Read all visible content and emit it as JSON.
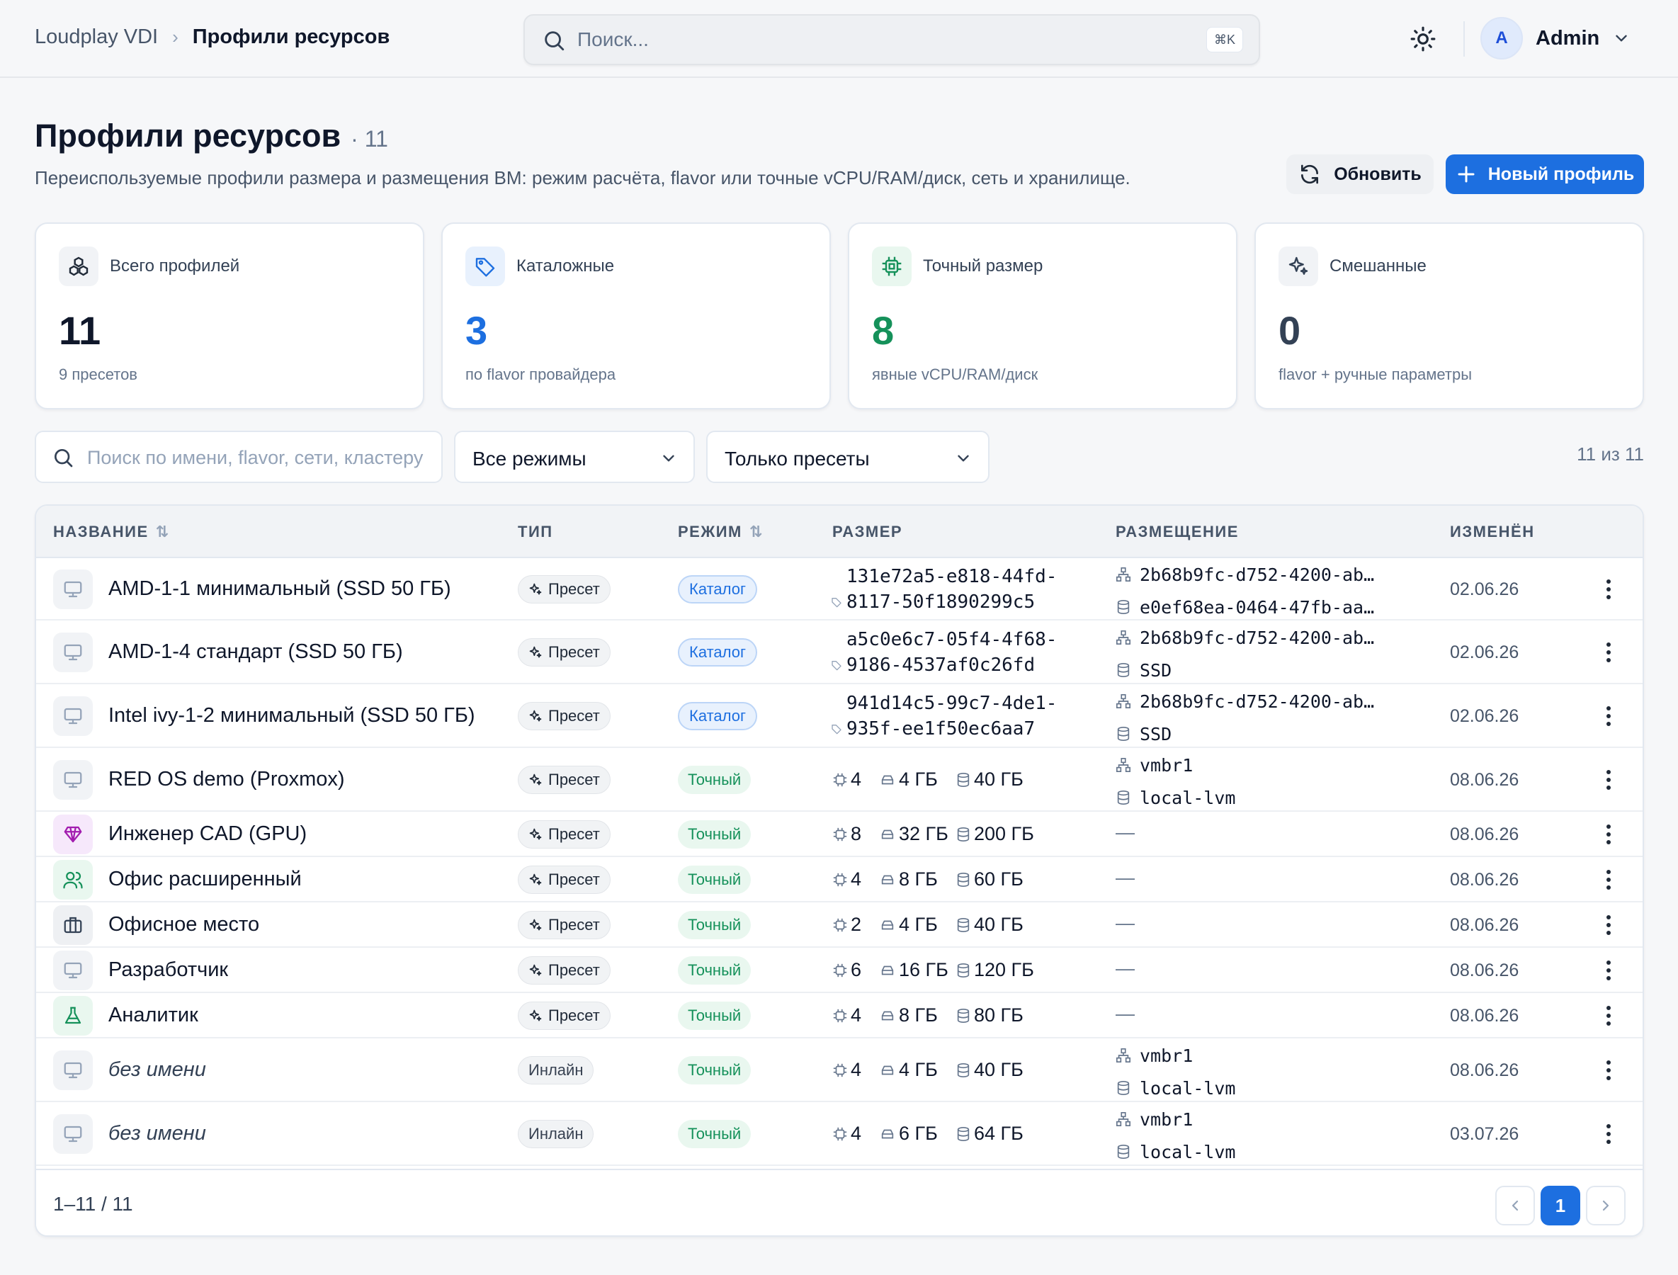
{
  "breadcrumb": {
    "root": "Loudplay VDI",
    "current": "Профили ресурсов"
  },
  "search": {
    "placeholder": "Поиск...",
    "shortcut": "⌘K"
  },
  "user": {
    "initial": "A",
    "name": "Admin"
  },
  "page": {
    "title": "Профили ресурсов",
    "count": "· 11",
    "subtitle": "Переиспользуемые профили размера и размещения ВМ: режим расчёта, flavor или точные vCPU/RAM/диск, сеть и хранилище.",
    "refresh_label": "Обновить",
    "new_label": "Новый профиль"
  },
  "stats": [
    {
      "label": "Всего профилей",
      "value": "11",
      "sub": "9 пресетов",
      "color": "#0f172a",
      "icon": "cubes-icon"
    },
    {
      "label": "Каталожные",
      "value": "3",
      "sub": "по flavor провайдера",
      "color": "#1d6fe0",
      "icon": "tag-icon"
    },
    {
      "label": "Точный размер",
      "value": "8",
      "sub": "явные vCPU/RAM/диск",
      "color": "#15915a",
      "icon": "cpu-icon"
    },
    {
      "label": "Смешанные",
      "value": "0",
      "sub": "flavor + ручные параметры",
      "color": "#334155",
      "icon": "sparkles-icon"
    }
  ],
  "filters": {
    "search_placeholder": "Поиск по имени, flavor, сети, кластеру",
    "mode": "Все режимы",
    "preset": "Только пресеты",
    "count": "11 из 11"
  },
  "table": {
    "columns": {
      "name": "НАЗВАНИЕ",
      "type": "ТИП",
      "mode": "РЕЖИМ",
      "size": "РАЗМЕР",
      "placement": "РАЗМЕЩЕНИЕ",
      "changed": "ИЗМЕНЁН"
    },
    "rows": [
      {
        "name": "AMD-1-1 минимальный (SSD 50 ГБ)",
        "icon": "monitor-icon",
        "type": "Пресет",
        "mode": "Каталог",
        "flavor": [
          "131e72a5-e818-44fd-",
          "8117-50f1890299c5"
        ],
        "net": "2b68b9fc-d752-4200-ab…",
        "storage": "e0ef68ea-0464-47fb-aa…",
        "date": "02.06.26"
      },
      {
        "name": "AMD-1-4 стандарт (SSD 50 ГБ)",
        "icon": "monitor-icon",
        "type": "Пресет",
        "mode": "Каталог",
        "flavor": [
          "a5c0e6c7-05f4-4f68-",
          "9186-4537af0c26fd"
        ],
        "net": "2b68b9fc-d752-4200-ab…",
        "storage": "SSD",
        "date": "02.06.26"
      },
      {
        "name": "Intel ivy-1-2 минимальный (SSD 50 ГБ)",
        "icon": "monitor-icon",
        "type": "Пресет",
        "mode": "Каталог",
        "flavor": [
          "941d14c5-99c7-4de1-",
          "935f-ee1f50ec6aa7"
        ],
        "net": "2b68b9fc-d752-4200-ab…",
        "storage": "SSD",
        "date": "02.06.26"
      },
      {
        "name": "RED OS demo (Proxmox)",
        "icon": "monitor-icon",
        "type": "Пресет",
        "mode": "Точный",
        "cpu": "4",
        "ram": "4 ГБ",
        "disk": "40 ГБ",
        "net": "vmbr1",
        "storage": "local-lvm",
        "date": "08.06.26"
      },
      {
        "name": "Инженер CAD (GPU)",
        "icon": "gem-icon",
        "type": "Пресет",
        "mode": "Точный",
        "cpu": "8",
        "ram": "32 ГБ",
        "disk": "200 ГБ",
        "placement_empty": "—",
        "date": "08.06.26"
      },
      {
        "name": "Офис расширенный",
        "icon": "users-icon",
        "type": "Пресет",
        "mode": "Точный",
        "cpu": "4",
        "ram": "8 ГБ",
        "disk": "60 ГБ",
        "placement_empty": "—",
        "date": "08.06.26"
      },
      {
        "name": "Офисное место",
        "icon": "briefcase-icon",
        "type": "Пресет",
        "mode": "Точный",
        "cpu": "2",
        "ram": "4 ГБ",
        "disk": "40 ГБ",
        "placement_empty": "—",
        "date": "08.06.26"
      },
      {
        "name": "Разработчик",
        "icon": "monitor-icon",
        "type": "Пресет",
        "mode": "Точный",
        "cpu": "6",
        "ram": "16 ГБ",
        "disk": "120 ГБ",
        "placement_empty": "—",
        "date": "08.06.26"
      },
      {
        "name": "Аналитик",
        "icon": "flask-icon",
        "type": "Пресет",
        "mode": "Точный",
        "cpu": "4",
        "ram": "8 ГБ",
        "disk": "80 ГБ",
        "placement_empty": "—",
        "date": "08.06.26"
      },
      {
        "name": "без имени",
        "icon": "monitor-icon",
        "type": "Инлайн",
        "mode": "Точный",
        "cpu": "4",
        "ram": "4 ГБ",
        "disk": "40 ГБ",
        "net": "vmbr1",
        "storage": "local-lvm",
        "date": "08.06.26"
      },
      {
        "name": "без имени",
        "icon": "monitor-icon",
        "type": "Инлайн",
        "mode": "Точный",
        "cpu": "4",
        "ram": "6 ГБ",
        "disk": "64 ГБ",
        "net": "vmbr1",
        "storage": "local-lvm",
        "date": "03.07.26"
      }
    ]
  },
  "pagination": {
    "range": "1–11 / 11",
    "current": "1"
  }
}
